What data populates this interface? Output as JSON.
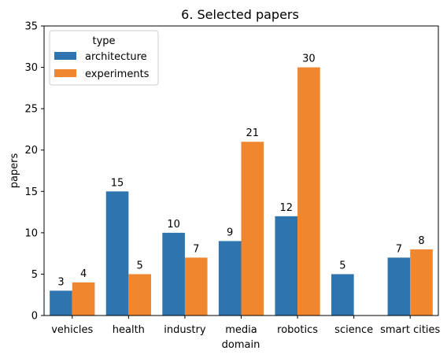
{
  "chart_data": {
    "type": "bar",
    "title": "6. Selected papers",
    "xlabel": "domain",
    "ylabel": "papers",
    "ylim": [
      0,
      35
    ],
    "yticks": [
      0,
      5,
      10,
      15,
      20,
      25,
      30,
      35
    ],
    "grid": false,
    "legend_title": "type",
    "legend_position": "top-left",
    "categories": [
      "vehicles",
      "health",
      "industry",
      "media",
      "robotics",
      "science",
      "smart cities"
    ],
    "series": [
      {
        "name": "architecture",
        "color": "#2e75b0",
        "values": [
          3,
          15,
          10,
          9,
          12,
          5,
          7
        ]
      },
      {
        "name": "experiments",
        "color": "#f0862d",
        "values": [
          4,
          5,
          7,
          21,
          30,
          null,
          8
        ]
      }
    ]
  }
}
